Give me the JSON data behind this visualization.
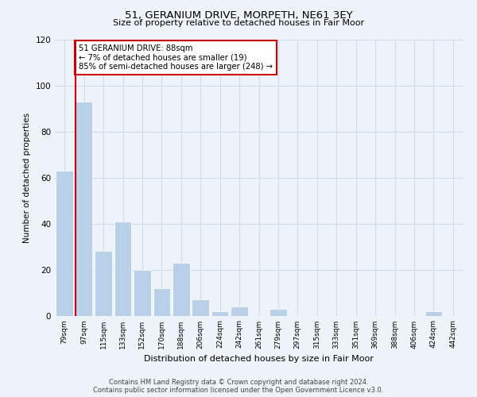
{
  "title": "51, GERANIUM DRIVE, MORPETH, NE61 3EY",
  "subtitle": "Size of property relative to detached houses in Fair Moor",
  "xlabel": "Distribution of detached houses by size in Fair Moor",
  "ylabel": "Number of detached properties",
  "bins": [
    "79sqm",
    "97sqm",
    "115sqm",
    "133sqm",
    "152sqm",
    "170sqm",
    "188sqm",
    "206sqm",
    "224sqm",
    "242sqm",
    "261sqm",
    "279sqm",
    "297sqm",
    "315sqm",
    "333sqm",
    "351sqm",
    "369sqm",
    "388sqm",
    "406sqm",
    "424sqm",
    "442sqm"
  ],
  "values": [
    63,
    93,
    28,
    41,
    20,
    12,
    23,
    7,
    2,
    4,
    0,
    3,
    0,
    0,
    0,
    0,
    0,
    0,
    0,
    2,
    0
  ],
  "bar_color": "#b8d0e8",
  "bar_edge_color": "#ffffff",
  "highlight_line_color": "#cc0000",
  "annotation_text": "51 GERANIUM DRIVE: 88sqm\n← 7% of detached houses are smaller (19)\n85% of semi-detached houses are larger (248) →",
  "annotation_box_color": "#ffffff",
  "annotation_box_edge_color": "#cc0000",
  "ylim": [
    0,
    120
  ],
  "yticks": [
    0,
    20,
    40,
    60,
    80,
    100,
    120
  ],
  "grid_color": "#d0dce8",
  "background_color": "#eef3f9",
  "footer_line1": "Contains HM Land Registry data © Crown copyright and database right 2024.",
  "footer_line2": "Contains public sector information licensed under the Open Government Licence v3.0."
}
